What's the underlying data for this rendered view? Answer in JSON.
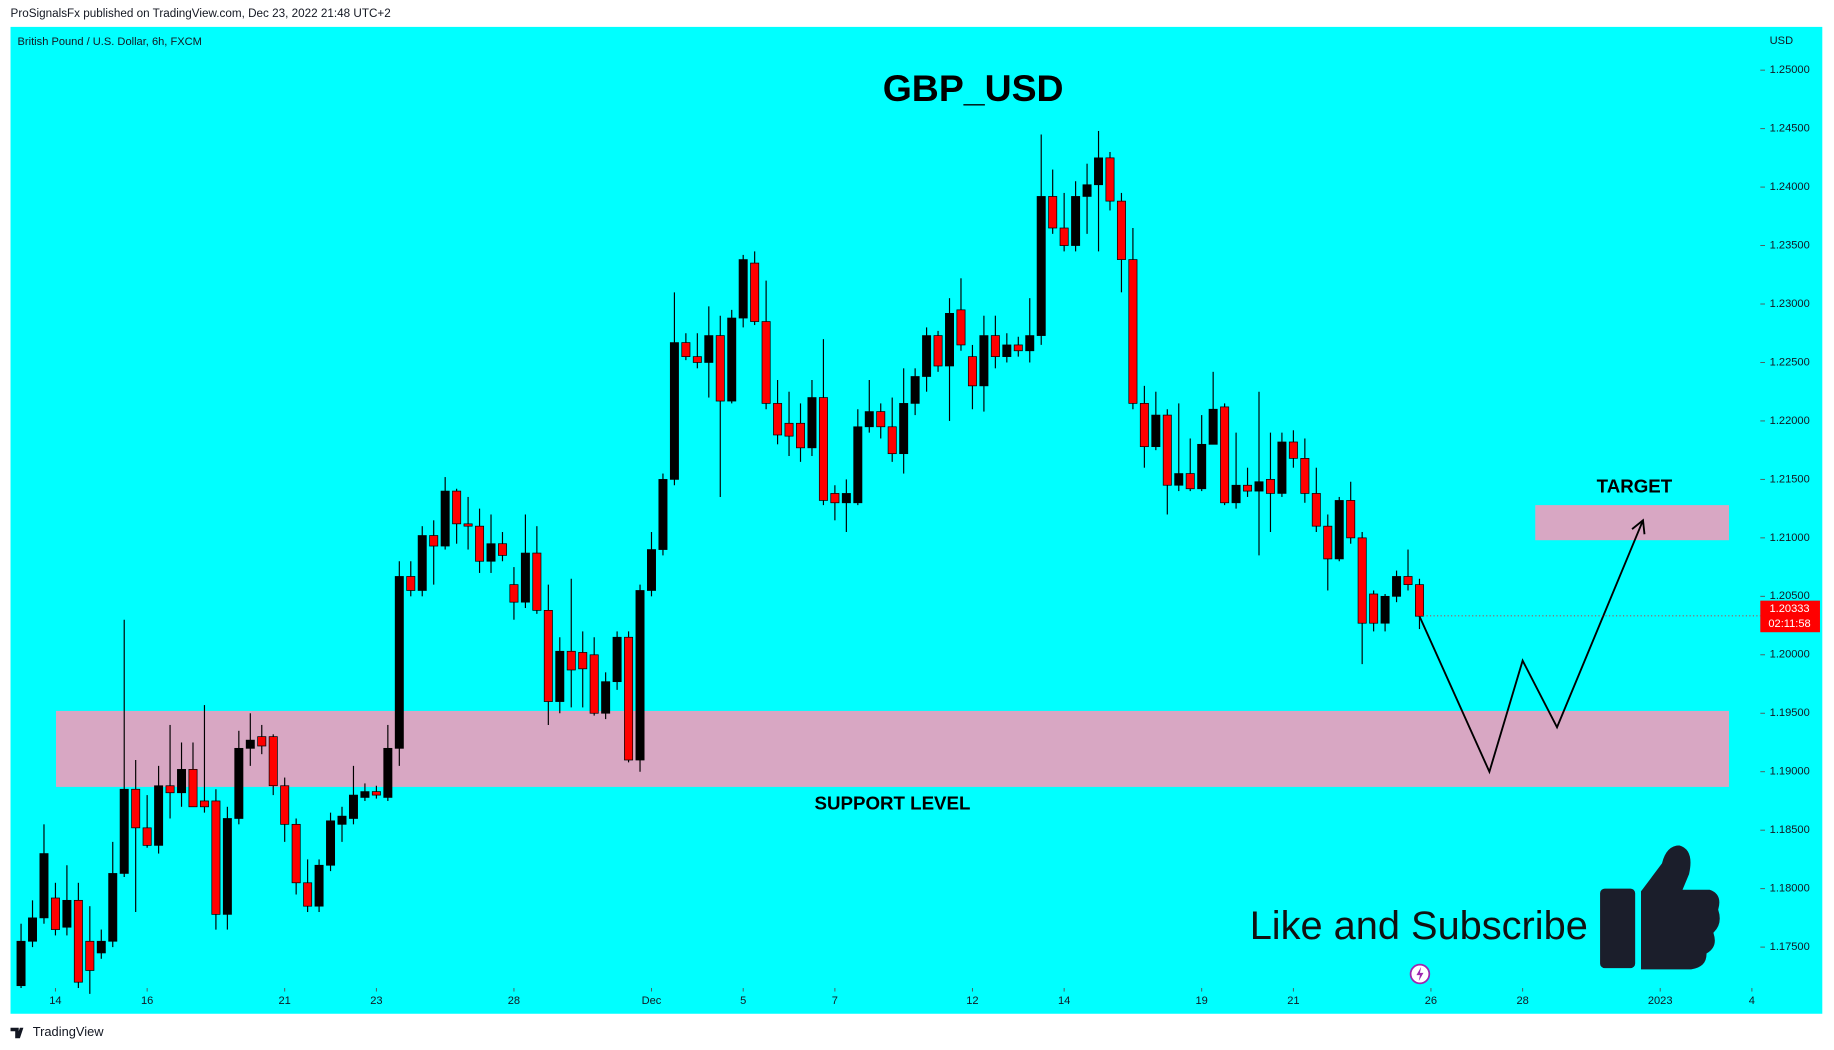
{
  "chart_data": {
    "type": "candlestick",
    "header": "ProSignalsFx published on TradingView.com, Dec 23, 2022 21:48 UTC+2",
    "symbol": "British Pound / U.S. Dollar, 6h, FXCM",
    "currency": "USD",
    "title": "GBP_USD",
    "footer": "TradingView",
    "background": "#00ffff",
    "up_color": "#000000",
    "down_color": "#ff0000",
    "grid": false,
    "candles": {
      "open": [
        1.1717,
        1.1755,
        1.1775,
        1.1792,
        1.1767,
        1.179,
        1.1755,
        1.1745,
        1.1755,
        1.1813,
        1.1885,
        1.1852,
        1.1837,
        1.1888,
        1.1882,
        1.1902,
        1.1875,
        1.1875,
        1.1778,
        1.186,
        1.192,
        1.193,
        1.193,
        1.1888,
        1.1855,
        1.1805,
        1.1785,
        1.182,
        1.1855,
        1.186,
        1.1878,
        1.1883,
        1.1878,
        1.192,
        1.2067,
        1.2055,
        1.2102,
        1.2093,
        1.214,
        1.2112,
        1.211,
        1.208,
        1.2095,
        1.206,
        1.2045,
        1.2087,
        1.2038,
        1.196,
        1.2003,
        1.2002,
        1.2,
        1.195,
        1.1977,
        1.2015,
        1.191,
        1.2055,
        1.209,
        1.215,
        1.2267,
        1.2255,
        1.225,
        1.2273,
        1.2217,
        1.2288,
        1.2335,
        1.2285,
        1.2215,
        1.2198,
        1.2198,
        1.2177,
        1.222,
        1.2138,
        1.213,
        1.213,
        1.2195,
        1.2208,
        1.2195,
        1.2172,
        1.2215,
        1.2238,
        1.2273,
        1.2247,
        1.2295,
        1.2255,
        1.223,
        1.2273,
        1.2255,
        1.2265,
        1.226,
        1.2273,
        1.2392,
        1.2365,
        1.235,
        1.2392,
        1.2402,
        1.2425,
        1.2388,
        1.2338,
        1.2215,
        1.2178,
        1.2205,
        1.2145,
        1.2155,
        1.2142,
        1.218,
        1.2212,
        1.213,
        1.2145,
        1.214,
        1.215,
        1.2138,
        1.2182,
        1.2168,
        1.2138,
        1.211,
        1.2082,
        1.2132,
        1.21,
        1.2052,
        1.2027,
        1.205,
        1.2067,
        1.206
      ],
      "high": [
        1.177,
        1.179,
        1.1855,
        1.1805,
        1.182,
        1.1805,
        1.1785,
        1.1765,
        1.184,
        1.203,
        1.191,
        1.188,
        1.1905,
        1.194,
        1.1925,
        1.1925,
        1.1957,
        1.1885,
        1.187,
        1.1935,
        1.195,
        1.194,
        1.1932,
        1.1895,
        1.186,
        1.1825,
        1.1825,
        1.1865,
        1.187,
        1.1905,
        1.189,
        1.1888,
        1.194,
        1.208,
        1.208,
        1.211,
        1.2115,
        1.2152,
        1.2142,
        1.2135,
        1.2125,
        1.212,
        1.2105,
        1.2075,
        1.212,
        1.211,
        1.206,
        1.2015,
        1.2065,
        1.202,
        1.2015,
        1.1985,
        1.202,
        1.202,
        1.206,
        1.2105,
        1.2155,
        1.231,
        1.2275,
        1.2275,
        1.2298,
        1.229,
        1.2295,
        1.2342,
        1.2345,
        1.232,
        1.2235,
        1.2225,
        1.2215,
        1.2235,
        1.227,
        1.2145,
        1.215,
        1.221,
        1.2235,
        1.2215,
        1.222,
        1.2245,
        1.2245,
        1.228,
        1.2277,
        1.2305,
        1.2322,
        1.2265,
        1.229,
        1.229,
        1.2275,
        1.2272,
        1.2305,
        1.2445,
        1.2415,
        1.2395,
        1.2405,
        1.242,
        1.2448,
        1.243,
        1.2395,
        1.2365,
        1.223,
        1.2225,
        1.221,
        1.2215,
        1.2185,
        1.2205,
        1.2242,
        1.2215,
        1.219,
        1.216,
        1.2225,
        1.219,
        1.219,
        1.2192,
        1.2185,
        1.216,
        1.212,
        1.2135,
        1.2148,
        1.2105,
        1.2055,
        1.2052,
        1.2072,
        1.209,
        1.2065
      ],
      "low": [
        1.1715,
        1.175,
        1.177,
        1.176,
        1.176,
        1.1715,
        1.171,
        1.174,
        1.175,
        1.181,
        1.178,
        1.1835,
        1.183,
        1.186,
        1.187,
        1.187,
        1.1865,
        1.1765,
        1.1765,
        1.1855,
        1.1905,
        1.1915,
        1.188,
        1.184,
        1.1795,
        1.178,
        1.178,
        1.1815,
        1.184,
        1.1855,
        1.1875,
        1.1877,
        1.1875,
        1.1905,
        1.205,
        1.205,
        1.206,
        1.209,
        1.2095,
        1.209,
        1.207,
        1.207,
        1.208,
        1.203,
        1.204,
        1.2035,
        1.194,
        1.195,
        1.1955,
        1.1955,
        1.1948,
        1.1945,
        1.197,
        1.1908,
        1.19,
        1.205,
        1.2085,
        1.2145,
        1.2252,
        1.2245,
        1.222,
        1.2135,
        1.2215,
        1.228,
        1.2282,
        1.221,
        1.218,
        1.217,
        1.2165,
        1.217,
        1.2128,
        1.2115,
        1.2105,
        1.2128,
        1.219,
        1.2185,
        1.2165,
        1.2155,
        1.2205,
        1.2225,
        1.2242,
        1.22,
        1.226,
        1.221,
        1.2208,
        1.2245,
        1.225,
        1.2255,
        1.225,
        1.2265,
        1.236,
        1.2345,
        1.2345,
        1.236,
        1.2345,
        1.238,
        1.231,
        1.221,
        1.216,
        1.2175,
        1.212,
        1.214,
        1.214,
        1.214,
        1.218,
        1.2128,
        1.2125,
        1.2135,
        1.2085,
        1.2105,
        1.2135,
        1.216,
        1.213,
        1.2105,
        1.2055,
        1.208,
        1.2095,
        1.1992,
        1.202,
        1.202,
        1.2045,
        1.2055,
        1.2022
      ],
      "close": [
        1.1755,
        1.1775,
        1.183,
        1.1765,
        1.179,
        1.172,
        1.173,
        1.1755,
        1.1813,
        1.1885,
        1.1852,
        1.1837,
        1.1888,
        1.1882,
        1.1902,
        1.187,
        1.187,
        1.1778,
        1.186,
        1.192,
        1.1927,
        1.1922,
        1.1888,
        1.1855,
        1.1805,
        1.1785,
        1.182,
        1.1858,
        1.1862,
        1.188,
        1.1883,
        1.188,
        1.192,
        1.2067,
        1.2055,
        1.2102,
        1.2093,
        1.214,
        1.2112,
        1.211,
        1.208,
        1.2095,
        1.2085,
        1.2045,
        1.2087,
        1.2038,
        1.196,
        1.2003,
        1.1987,
        1.1988,
        1.195,
        1.1977,
        1.2015,
        1.191,
        1.2055,
        1.209,
        1.215,
        1.2267,
        1.2255,
        1.225,
        1.2273,
        1.2217,
        1.2288,
        1.2338,
        1.2285,
        1.2215,
        1.2188,
        1.2187,
        1.2177,
        1.222,
        1.2132,
        1.213,
        1.2138,
        1.2195,
        1.2208,
        1.2195,
        1.2172,
        1.2215,
        1.2238,
        1.2273,
        1.2247,
        1.2292,
        1.2265,
        1.223,
        1.2273,
        1.2255,
        1.2265,
        1.226,
        1.2273,
        1.2392,
        1.2365,
        1.235,
        1.2392,
        1.2402,
        1.2425,
        1.2388,
        1.2338,
        1.2215,
        1.2178,
        1.2205,
        1.2145,
        1.2155,
        1.2142,
        1.218,
        1.221,
        1.213,
        1.2145,
        1.214,
        1.2148,
        1.2138,
        1.2182,
        1.2168,
        1.2138,
        1.211,
        1.2082,
        1.2132,
        1.21,
        1.2027,
        1.2027,
        1.205,
        1.2067,
        1.206,
        1.2033
      ]
    },
    "xlim": [
      -1,
      152
    ],
    "ylim": [
      1.1715,
      1.2537
    ],
    "xticks": [
      {
        "value": 3,
        "label": "14"
      },
      {
        "value": 11,
        "label": "16"
      },
      {
        "value": 23,
        "label": "21"
      },
      {
        "value": 31,
        "label": "23"
      },
      {
        "value": 43,
        "label": "28"
      },
      {
        "value": 55,
        "label": "Dec"
      },
      {
        "value": 63,
        "label": "5"
      },
      {
        "value": 71,
        "label": "7"
      },
      {
        "value": 83,
        "label": "12"
      },
      {
        "value": 91,
        "label": "14"
      },
      {
        "value": 103,
        "label": "19"
      },
      {
        "value": 111,
        "label": "21"
      },
      {
        "value": 123,
        "label": "26"
      },
      {
        "value": 131,
        "label": "28"
      },
      {
        "value": 143,
        "label": "2023"
      },
      {
        "value": 151,
        "label": "4"
      }
    ],
    "yticks": [
      {
        "value": 1.175,
        "label": "1.17500"
      },
      {
        "value": 1.18,
        "label": "1.18000"
      },
      {
        "value": 1.185,
        "label": "1.18500"
      },
      {
        "value": 1.19,
        "label": "1.19000"
      },
      {
        "value": 1.195,
        "label": "1.19500"
      },
      {
        "value": 1.2,
        "label": "1.20000"
      },
      {
        "value": 1.205,
        "label": "1.20500"
      },
      {
        "value": 1.21,
        "label": "1.21000"
      },
      {
        "value": 1.215,
        "label": "1.21500"
      },
      {
        "value": 1.22,
        "label": "1.22000"
      },
      {
        "value": 1.225,
        "label": "1.22500"
      },
      {
        "value": 1.23,
        "label": "1.23000"
      },
      {
        "value": 1.235,
        "label": "1.23500"
      },
      {
        "value": 1.24,
        "label": "1.24000"
      },
      {
        "value": 1.245,
        "label": "1.24500"
      },
      {
        "value": 1.25,
        "label": "1.25000"
      }
    ],
    "last_price": 1.20333,
    "last_price_color": "#ff0000",
    "countdown": "02:11:58",
    "zone_color": "#d8a7c3",
    "support": {
      "label": "SUPPORT LEVEL",
      "x": [
        3.05,
        149
      ],
      "y": [
        1.1887,
        1.1952
      ]
    },
    "target": {
      "label": "TARGET",
      "x": [
        132.1,
        149
      ],
      "y": [
        1.2098,
        1.2128
      ]
    },
    "projection": {
      "x": [
        122,
        128.1,
        131,
        134,
        141.5
      ],
      "y": [
        1.2033,
        1.19,
        1.1995,
        1.1938,
        1.2115
      ]
    },
    "call_to_action": "Like and Subscribe"
  }
}
